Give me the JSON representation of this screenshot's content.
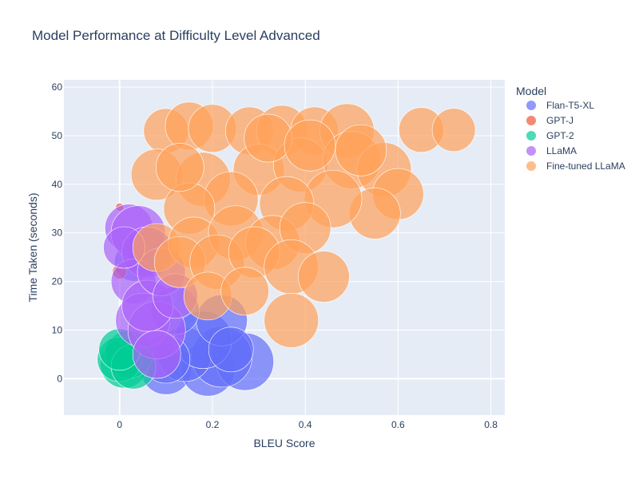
{
  "chart_data": {
    "type": "scatter",
    "title": "Model Performance at Difficulty Level Advanced",
    "xlabel": "BLEU Score",
    "ylabel": "Time Taken (seconds)",
    "xlim": [
      -0.12,
      0.83
    ],
    "ylim": [
      -7.5,
      61.5
    ],
    "x_ticks": [
      0,
      0.2,
      0.4,
      0.6,
      0.8
    ],
    "x_tick_labels": [
      "0",
      "0.2",
      "0.4",
      "0.6",
      "0.8"
    ],
    "y_ticks": [
      0,
      10,
      20,
      30,
      40,
      50,
      60
    ],
    "y_tick_labels": [
      "0",
      "10",
      "20",
      "30",
      "40",
      "50",
      "60"
    ],
    "grid": true,
    "legend_title": "Model",
    "legend_position": "right",
    "series": [
      {
        "name": "Flan-T5-XL",
        "color": "#636efa",
        "points": [
          {
            "x": 0.1,
            "y": 2,
            "s": 32
          },
          {
            "x": 0.19,
            "y": 2,
            "s": 34
          },
          {
            "x": 0.27,
            "y": 3.5,
            "s": 36
          },
          {
            "x": 0.22,
            "y": 4.5,
            "s": 38
          },
          {
            "x": 0.14,
            "y": 5,
            "s": 34
          },
          {
            "x": 0.18,
            "y": 8,
            "s": 36
          },
          {
            "x": 0.22,
            "y": 12,
            "s": 32
          },
          {
            "x": 0.12,
            "y": 14,
            "s": 30
          },
          {
            "x": 0.06,
            "y": 26,
            "s": 28
          },
          {
            "x": 0.1,
            "y": 4,
            "s": 30
          },
          {
            "x": 0.24,
            "y": 6,
            "s": 28
          },
          {
            "x": 0.03,
            "y": 24,
            "s": 24
          }
        ]
      },
      {
        "name": "GPT-J",
        "color": "#ef553b",
        "points": [
          {
            "x": 0.0,
            "y": 35.3,
            "s": 5
          },
          {
            "x": 0.0,
            "y": 22,
            "s": 9
          }
        ]
      },
      {
        "name": "GPT-2",
        "color": "#00cc96",
        "points": [
          {
            "x": 0.01,
            "y": 3,
            "s": 30
          },
          {
            "x": 0.02,
            "y": 5,
            "s": 30
          },
          {
            "x": 0.0,
            "y": 4,
            "s": 28
          },
          {
            "x": 0.03,
            "y": 2.5,
            "s": 28
          },
          {
            "x": 0.0,
            "y": 6,
            "s": 26
          }
        ]
      },
      {
        "name": "LLaMA",
        "color": "#ab63fa",
        "points": [
          {
            "x": 0.02,
            "y": 31,
            "s": 30
          },
          {
            "x": 0.04,
            "y": 30,
            "s": 34
          },
          {
            "x": 0.06,
            "y": 26,
            "s": 32
          },
          {
            "x": 0.03,
            "y": 20,
            "s": 28
          },
          {
            "x": 0.05,
            "y": 12,
            "s": 34
          },
          {
            "x": 0.08,
            "y": 10,
            "s": 36
          },
          {
            "x": 0.06,
            "y": 15,
            "s": 32
          },
          {
            "x": 0.09,
            "y": 22,
            "s": 30
          },
          {
            "x": 0.08,
            "y": 5,
            "s": 30
          },
          {
            "x": 0.12,
            "y": 17,
            "s": 28
          },
          {
            "x": 0.01,
            "y": 27,
            "s": 26
          }
        ]
      },
      {
        "name": "Fine-tuned LLaMA",
        "color": "#ffa15a",
        "points": [
          {
            "x": 0.1,
            "y": 51,
            "s": 28
          },
          {
            "x": 0.15,
            "y": 52,
            "s": 30
          },
          {
            "x": 0.2,
            "y": 51.5,
            "s": 30
          },
          {
            "x": 0.28,
            "y": 51,
            "s": 30
          },
          {
            "x": 0.35,
            "y": 51,
            "s": 32
          },
          {
            "x": 0.42,
            "y": 51,
            "s": 30
          },
          {
            "x": 0.49,
            "y": 51,
            "s": 34
          },
          {
            "x": 0.65,
            "y": 51.2,
            "s": 28
          },
          {
            "x": 0.72,
            "y": 51.2,
            "s": 27
          },
          {
            "x": 0.08,
            "y": 42,
            "s": 32
          },
          {
            "x": 0.18,
            "y": 41,
            "s": 34
          },
          {
            "x": 0.3,
            "y": 43,
            "s": 32
          },
          {
            "x": 0.39,
            "y": 44,
            "s": 34
          },
          {
            "x": 0.5,
            "y": 45,
            "s": 36
          },
          {
            "x": 0.57,
            "y": 43,
            "s": 34
          },
          {
            "x": 0.6,
            "y": 38,
            "s": 32
          },
          {
            "x": 0.55,
            "y": 34,
            "s": 32
          },
          {
            "x": 0.46,
            "y": 37,
            "s": 36
          },
          {
            "x": 0.36,
            "y": 36,
            "s": 34
          },
          {
            "x": 0.24,
            "y": 37,
            "s": 34
          },
          {
            "x": 0.15,
            "y": 35,
            "s": 32
          },
          {
            "x": 0.08,
            "y": 27,
            "s": 30
          },
          {
            "x": 0.16,
            "y": 28,
            "s": 32
          },
          {
            "x": 0.25,
            "y": 30,
            "s": 34
          },
          {
            "x": 0.33,
            "y": 28,
            "s": 34
          },
          {
            "x": 0.4,
            "y": 31,
            "s": 32
          },
          {
            "x": 0.13,
            "y": 24,
            "s": 32
          },
          {
            "x": 0.21,
            "y": 24,
            "s": 34
          },
          {
            "x": 0.29,
            "y": 26,
            "s": 32
          },
          {
            "x": 0.37,
            "y": 23,
            "s": 34
          },
          {
            "x": 0.44,
            "y": 21,
            "s": 32
          },
          {
            "x": 0.19,
            "y": 17,
            "s": 30
          },
          {
            "x": 0.27,
            "y": 18,
            "s": 30
          },
          {
            "x": 0.37,
            "y": 12,
            "s": 34
          },
          {
            "x": 0.32,
            "y": 49.5,
            "s": 30
          },
          {
            "x": 0.41,
            "y": 48,
            "s": 32
          },
          {
            "x": 0.52,
            "y": 47,
            "s": 32
          },
          {
            "x": 0.13,
            "y": 43.5,
            "s": 30
          }
        ]
      }
    ]
  }
}
